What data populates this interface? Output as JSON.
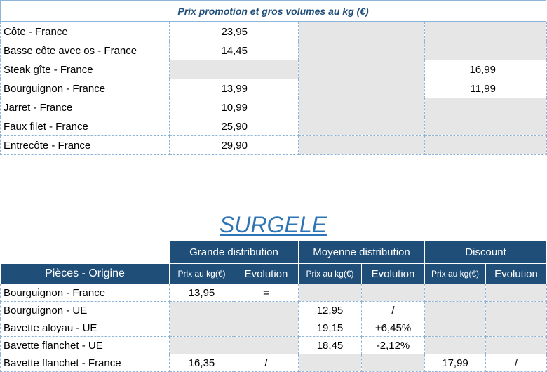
{
  "top_table": {
    "title": "Prix promotion et gros volumes au kg (€)",
    "rows": [
      {
        "label": "Côte - France",
        "c1": "23,95",
        "c2": "",
        "c3": "",
        "g1": false,
        "g2": true,
        "g3": true
      },
      {
        "label": "Basse côte avec os - France",
        "c1": "14,45",
        "c2": "",
        "c3": "",
        "g1": false,
        "g2": true,
        "g3": true
      },
      {
        "label": "Steak gîte  - France",
        "c1": "",
        "c2": "",
        "c3": "16,99",
        "g1": true,
        "g2": true,
        "g3": false
      },
      {
        "label": "Bourguignon  - France",
        "c1": "13,99",
        "c2": "",
        "c3": "11,99",
        "g1": false,
        "g2": true,
        "g3": false
      },
      {
        "label": "Jarret - France",
        "c1": "10,99",
        "c2": "",
        "c3": "",
        "g1": false,
        "g2": true,
        "g3": true
      },
      {
        "label": "Faux filet  - France",
        "c1": "25,90",
        "c2": "",
        "c3": "",
        "g1": false,
        "g2": true,
        "g3": true
      },
      {
        "label": "Entrecôte  - France",
        "c1": "29,90",
        "c2": "",
        "c3": "",
        "g1": false,
        "g2": true,
        "g3": true
      }
    ]
  },
  "surgele": {
    "title": "SURGELE",
    "groups": [
      "Grande distribution",
      "Moyenne distribution",
      "Discount"
    ],
    "pieces_header": "Pièces - Origine",
    "prix_label": "Prix au kg(€)",
    "evolution_label": "Evolution",
    "rows": [
      {
        "label": "Bourguignon - France",
        "v": [
          "13,95",
          "=",
          "",
          "",
          "",
          ""
        ],
        "gray": [
          false,
          false,
          true,
          true,
          true,
          true
        ]
      },
      {
        "label": "Bourguignon - UE",
        "v": [
          "",
          "",
          "12,95",
          "/",
          "",
          ""
        ],
        "gray": [
          true,
          true,
          false,
          false,
          true,
          true
        ]
      },
      {
        "label": "Bavette aloyau - UE",
        "v": [
          "",
          "",
          "19,15",
          "+6,45%",
          "",
          ""
        ],
        "gray": [
          true,
          true,
          false,
          false,
          true,
          true
        ]
      },
      {
        "label": "Bavette flanchet - UE",
        "v": [
          "",
          "",
          "18,45",
          "-2,12%",
          "",
          ""
        ],
        "gray": [
          true,
          true,
          false,
          false,
          true,
          true
        ]
      },
      {
        "label": "Bavette flanchet - France",
        "v": [
          "16,35",
          "/",
          "",
          "",
          "17,99",
          "/"
        ],
        "gray": [
          false,
          false,
          true,
          true,
          false,
          false
        ]
      }
    ]
  }
}
